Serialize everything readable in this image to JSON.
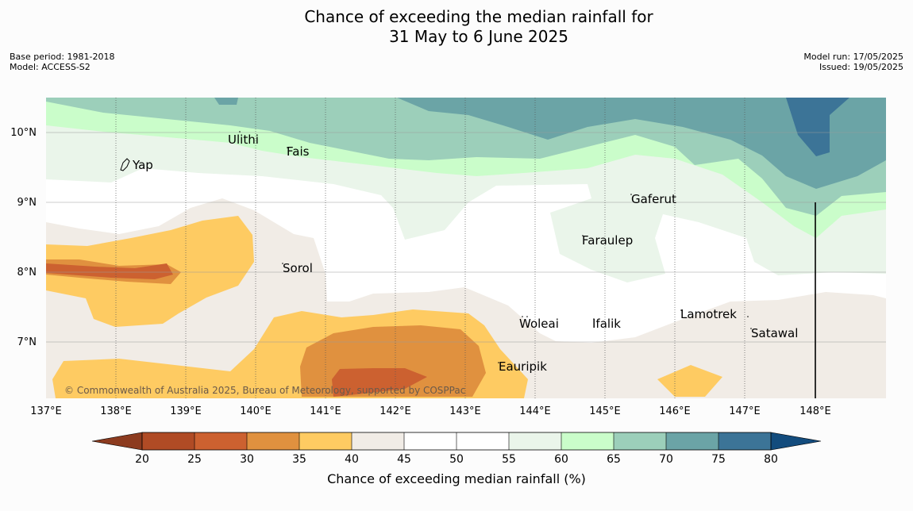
{
  "title": {
    "line1": "Chance of exceeding the median rainfall for",
    "line2": "31 May to 6 June 2025"
  },
  "meta": {
    "base_period": "Base period: 1981-2018",
    "model": "Model: ACCESS-S2",
    "model_run": "Model run: 17/05/2025",
    "issued": "Issued: 19/05/2025"
  },
  "map": {
    "lon_labels": [
      "137°E",
      "138°E",
      "139°E",
      "140°E",
      "141°E",
      "142°E",
      "143°E",
      "144°E",
      "145°E",
      "146°E",
      "147°E",
      "148°E"
    ],
    "lat_labels": [
      "10°N",
      "9°N",
      "8°N",
      "7°N"
    ],
    "copyright": "© Commonwealth of Australia 2025, Bureau of Meteorology, supported by COSPPac",
    "places": [
      "Ulithi",
      "Fais",
      "Yap",
      "Gaferut",
      "Faraulep",
      "Sorol",
      "Woleai",
      "Ifalik",
      "Lamotrek",
      "Satawal",
      "Eauripik"
    ]
  },
  "colorbar": {
    "label": "Chance of exceeding median rainfall (%)",
    "ticks": [
      "20",
      "25",
      "30",
      "35",
      "40",
      "45",
      "50",
      "55",
      "60",
      "65",
      "70",
      "75",
      "80"
    ],
    "colors": {
      "lt20": "#8c3b1f",
      "20-25": "#b04b25",
      "25-30": "#cc6130",
      "30-35": "#e0913f",
      "35-40": "#fecb62",
      "40-45": "#f1ece6",
      "45-50": "#ffffff",
      "50-55": "#ffffff",
      "55-60": "#eaf5ea",
      "60-65": "#cafdca",
      "65-70": "#9ccfba",
      "70-75": "#6ba4a6",
      "75-80": "#3c7497",
      "gt80": "#134c7d"
    }
  }
}
